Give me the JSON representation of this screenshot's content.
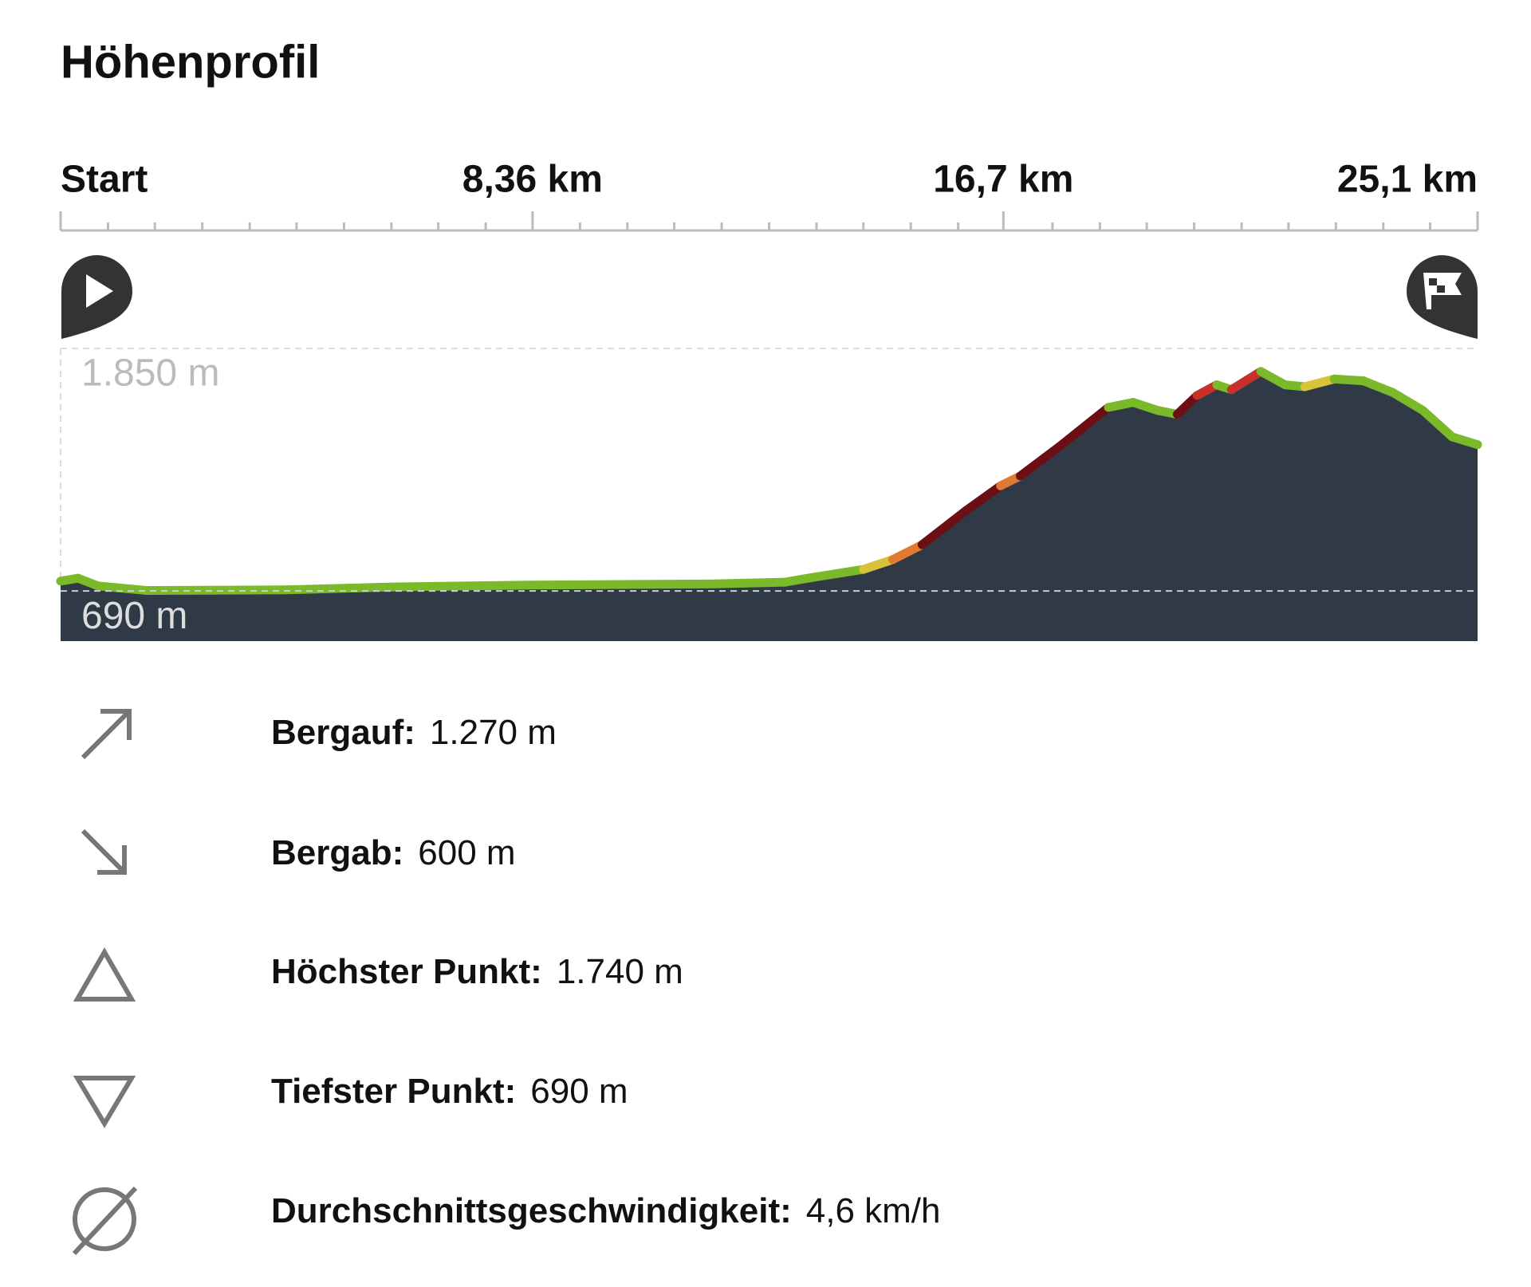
{
  "title": "Höhenprofil",
  "chart_data": {
    "type": "area",
    "x": [
      0,
      0.31,
      0.66,
      1.53,
      3.96,
      5.88,
      8.31,
      11.44,
      12.83,
      13.35,
      14.22,
      14.74,
      15.26,
      16.04,
      16.65,
      17.0,
      17.69,
      18.56,
      19.0,
      19.43,
      19.78,
      20.13,
      20.48,
      20.74,
      21.26,
      21.69,
      22.04,
      22.56,
      23.08,
      23.6,
      24.13,
      24.65,
      25.1
    ],
    "series": [
      {
        "color": "#2f3a46",
        "values": [
          737,
          751,
          714,
          692,
          695,
          709,
          718,
          723,
          732,
          756,
          793,
          840,
          911,
          1075,
          1193,
          1240,
          1380,
          1568,
          1592,
          1554,
          1535,
          1625,
          1676,
          1653,
          1740,
          1676,
          1667,
          1704,
          1695,
          1639,
          1554,
          1427,
          1390
        ]
      }
    ],
    "line_colors": [
      "#7ab929",
      "#d8c23a",
      "#e07a30",
      "#c8302c",
      "#6b0f14"
    ],
    "xlim": [
      0,
      25.1
    ],
    "xticks": [
      {
        "value": 0,
        "label": "Start"
      },
      {
        "value": 8.36,
        "label": "8,36 km"
      },
      {
        "value": 16.7,
        "label": "16,7 km"
      },
      {
        "value": 25.1,
        "label": "25,1 km"
      }
    ],
    "xticks_minor": [
      0.84,
      1.67,
      2.51,
      3.35,
      4.18,
      5.02,
      5.86,
      6.69,
      7.53,
      9.2,
      10.04,
      10.87,
      11.71,
      12.55,
      13.39,
      14.22,
      15.06,
      15.9,
      17.57,
      18.41,
      19.24,
      20.08,
      20.92,
      21.75,
      22.59,
      23.43,
      24.26
    ],
    "ylim": [
      450,
      1850
    ],
    "yticks": [
      {
        "value": 690,
        "label": "690 m"
      },
      {
        "value": 1850,
        "label": "1.850 m"
      }
    ]
  },
  "stats": [
    {
      "label": "Bergauf:",
      "value": "1.270 m"
    },
    {
      "label": "Bergab:",
      "value": "600 m"
    },
    {
      "label": "Höchster Punkt:",
      "value": "1.740 m"
    },
    {
      "label": "Tiefster Punkt:",
      "value": "690 m"
    },
    {
      "label": "Durchschnittsgeschwindigkeit:",
      "value": "4,6 km/h"
    }
  ]
}
